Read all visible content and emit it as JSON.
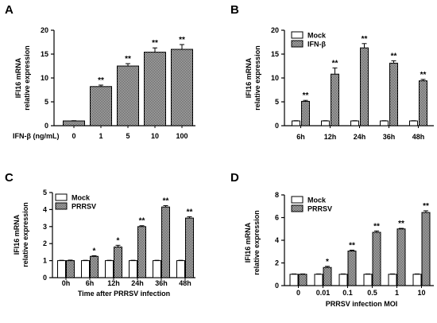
{
  "chart_data": [
    {
      "panel": "A",
      "type": "bar",
      "xlabel": "IFN-β (ng/mL)",
      "ylabel": [
        "IFI16 mRNA",
        "relative expression"
      ],
      "ylim": [
        0,
        20
      ],
      "yticks": [
        0,
        5,
        10,
        15,
        20
      ],
      "categories": [
        "0",
        "1",
        "5",
        "10",
        "100"
      ],
      "series": [
        {
          "values": [
            1.0,
            8.2,
            12.5,
            15.4,
            16.0
          ],
          "errors": [
            0.05,
            0.3,
            0.5,
            0.9,
            1.0
          ],
          "significance": [
            "",
            "**",
            "**",
            "**",
            "**"
          ],
          "color": "#666666"
        }
      ]
    },
    {
      "panel": "B",
      "type": "bar",
      "xlabel": "",
      "ylabel": [
        "IFI16 mRNA",
        "relative expression"
      ],
      "ylim": [
        0,
        20
      ],
      "yticks": [
        0,
        5,
        10,
        15,
        20
      ],
      "categories": [
        "6h",
        "12h",
        "24h",
        "36h",
        "48h"
      ],
      "legend": "top-left",
      "series": [
        {
          "name": "Mock",
          "values": [
            1,
            1,
            1,
            1,
            1
          ],
          "errors": [
            0.05,
            0.05,
            0.05,
            0.05,
            0.05
          ],
          "significance": [
            "",
            "",
            "",
            "",
            ""
          ],
          "color": "#ffffff"
        },
        {
          "name": "IFN-β",
          "values": [
            5.1,
            10.8,
            16.3,
            13.1,
            9.4
          ],
          "errors": [
            0.2,
            1.3,
            0.9,
            0.5,
            0.3
          ],
          "significance": [
            "**",
            "**",
            "**",
            "**",
            "**"
          ],
          "color": "#666666"
        }
      ]
    },
    {
      "panel": "C",
      "type": "bar",
      "xlabel": "Time after PRRSV infection",
      "ylabel": [
        "IFI16 mRNA",
        "relative expression"
      ],
      "ylim": [
        0,
        5
      ],
      "yticks": [
        0,
        1,
        2,
        3,
        4,
        5
      ],
      "categories": [
        "0h",
        "6h",
        "12h",
        "24h",
        "36h",
        "48h"
      ],
      "legend": "top-left",
      "series": [
        {
          "name": "Mock",
          "values": [
            1,
            1,
            1,
            1,
            1,
            1
          ],
          "errors": [
            0.02,
            0.02,
            0.02,
            0.02,
            0.02,
            0.02
          ],
          "significance": [
            "",
            "",
            "",
            "",
            "",
            ""
          ],
          "color": "#ffffff"
        },
        {
          "name": "PRRSV",
          "values": [
            1.0,
            1.25,
            1.8,
            3.0,
            4.15,
            3.5
          ],
          "errors": [
            0.03,
            0.04,
            0.1,
            0.05,
            0.08,
            0.08
          ],
          "significance": [
            "",
            "*",
            "*",
            "**",
            "**",
            "**"
          ],
          "color": "#666666"
        }
      ]
    },
    {
      "panel": "D",
      "type": "bar",
      "xlabel": "PRRSV infection MOI",
      "ylabel": [
        "IFI16 mRNA",
        "relative expression"
      ],
      "ylim": [
        0,
        8
      ],
      "yticks": [
        0,
        2,
        4,
        6,
        8
      ],
      "categories": [
        "0",
        "0.01",
        "0.1",
        "0.5",
        "1",
        "10"
      ],
      "legend": "top-left",
      "series": [
        {
          "name": "Mock",
          "values": [
            1,
            1,
            1,
            1,
            1,
            1
          ],
          "errors": [
            0.03,
            0.03,
            0.03,
            0.03,
            0.03,
            0.03
          ],
          "significance": [
            "",
            "",
            "",
            "",
            "",
            ""
          ],
          "color": "#ffffff"
        },
        {
          "name": "PRRSV",
          "values": [
            1.0,
            1.6,
            3.05,
            4.7,
            5.0,
            6.45
          ],
          "errors": [
            0.03,
            0.1,
            0.08,
            0.12,
            0.05,
            0.15
          ],
          "significance": [
            "",
            "*",
            "**",
            "**",
            "**",
            "**"
          ],
          "color": "#666666"
        }
      ]
    }
  ]
}
